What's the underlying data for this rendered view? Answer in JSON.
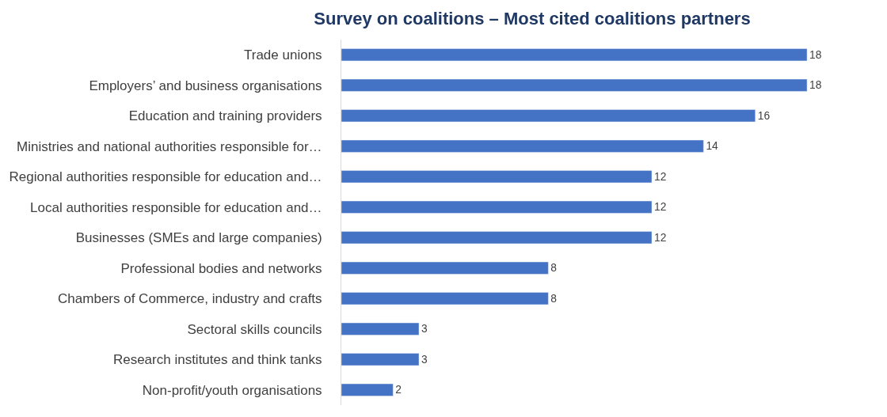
{
  "chart_data": {
    "type": "bar",
    "orientation": "horizontal",
    "title": "Survey on coalitions – Most cited coalitions partners",
    "categories": [
      "Trade unions",
      "Employers’ and business organisations",
      "Education and training providers",
      "Ministries and national authorities responsible for…",
      "Regional authorities responsible for education and…",
      "Local authorities responsible for education and…",
      "Businesses (SMEs and large companies)",
      "Professional bodies and networks",
      "Chambers of Commerce, industry and crafts",
      "Sectoral skills councils",
      "Research institutes and think tanks",
      "Non-profit/youth organisations"
    ],
    "values": [
      18,
      18,
      16,
      14,
      12,
      12,
      12,
      8,
      8,
      3,
      3,
      2
    ],
    "color": "#4472c4",
    "data_labels": true,
    "legend": false,
    "tick_labels": "y"
  }
}
